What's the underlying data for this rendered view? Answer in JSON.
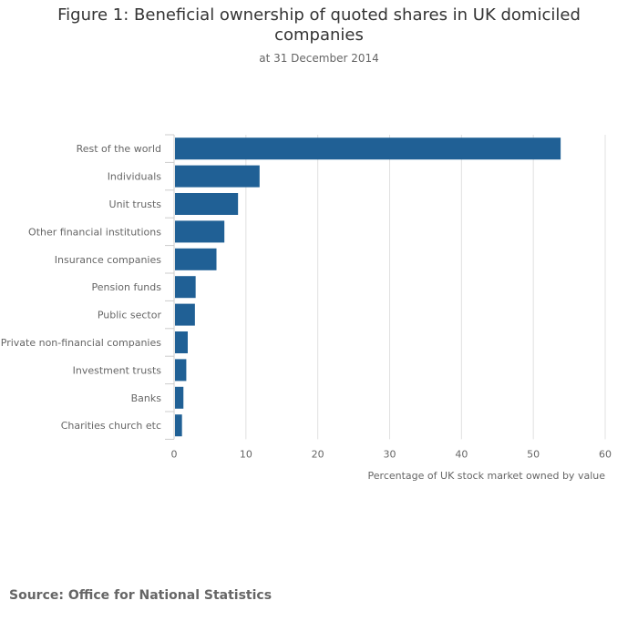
{
  "chart_data": {
    "type": "bar",
    "orientation": "horizontal",
    "title": "Figure 1: Beneficial ownership of quoted shares in UK domiciled companies",
    "subtitle": "at 31 December 2014",
    "categories": [
      "Rest of the world",
      "Individuals",
      "Unit trusts",
      "Other financial institutions",
      "Insurance companies",
      "Pension funds",
      "Public sector",
      "Private non-financial companies",
      "Investment trusts",
      "Banks",
      "Charities church etc"
    ],
    "values": [
      53.8,
      11.9,
      8.9,
      7.0,
      5.9,
      3.0,
      2.9,
      1.9,
      1.7,
      1.3,
      1.1
    ],
    "xlabel": "Percentage of UK stock market owned by value",
    "ylabel": "",
    "xlim": [
      0,
      60
    ],
    "xticks": [
      0,
      10,
      20,
      30,
      40,
      50,
      60
    ],
    "grid": true,
    "bar_color": "#206095",
    "source": "Source: Office for National Statistics"
  }
}
